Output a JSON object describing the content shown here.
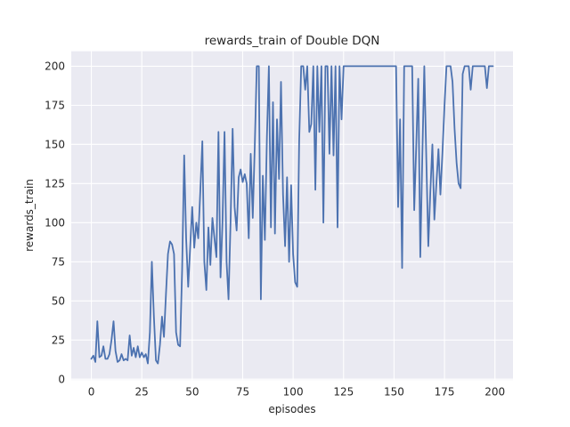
{
  "chart_data": {
    "type": "line",
    "title": "rewards_train of Double DQN",
    "xlabel": "episodes",
    "ylabel": "rewards_train",
    "x_ticks": [
      0,
      25,
      50,
      75,
      100,
      125,
      150,
      175,
      200
    ],
    "y_ticks": [
      0,
      25,
      50,
      75,
      100,
      125,
      150,
      175,
      200
    ],
    "xlim": [
      -9.95,
      208.95
    ],
    "ylim": [
      -0.55,
      209.55
    ],
    "grid": "on",
    "legend": "none",
    "x_start": 0,
    "x_step": 1,
    "series": [
      {
        "name": "rewards_train",
        "values": [
          13,
          15,
          11,
          37,
          14,
          15,
          21,
          13,
          13,
          16,
          25,
          37,
          18,
          11,
          12,
          16,
          12,
          13,
          12,
          28,
          15,
          20,
          14,
          21,
          14,
          17,
          14,
          16,
          10,
          30,
          75,
          40,
          12,
          10,
          22,
          40,
          27,
          55,
          80,
          88,
          86,
          80,
          30,
          22,
          21,
          70,
          143,
          90,
          59,
          85,
          110,
          84,
          100,
          90,
          120,
          152,
          75,
          57,
          97,
          73,
          103,
          90,
          78,
          158,
          65,
          100,
          158,
          75,
          51,
          101,
          160,
          110,
          95,
          129,
          134,
          126,
          131,
          125,
          90,
          144,
          103,
          150,
          200,
          200,
          51,
          130,
          89,
          155,
          200,
          97,
          177,
          93,
          166,
          128,
          190,
          118,
          85,
          129,
          75,
          124,
          80,
          62,
          59,
          152,
          200,
          200,
          185,
          200,
          158,
          163,
          200,
          121,
          200,
          158,
          200,
          100,
          200,
          200,
          144,
          200,
          143,
          200,
          97,
          200,
          166,
          200,
          200,
          200,
          200,
          200,
          200,
          200,
          200,
          200,
          200,
          200,
          200,
          200,
          200,
          200,
          200,
          200,
          200,
          200,
          200,
          200,
          200,
          200,
          200,
          200,
          200,
          200,
          110,
          166,
          71,
          200,
          200,
          200,
          200,
          200,
          108,
          150,
          192,
          78,
          140,
          200,
          140,
          85,
          120,
          150,
          102,
          125,
          147,
          118,
          145,
          175,
          200,
          200,
          200,
          190,
          160,
          138,
          125,
          122,
          195,
          200,
          200,
          200,
          185,
          200,
          200,
          200,
          200,
          200,
          200,
          200,
          186,
          200,
          200,
          200
        ]
      }
    ],
    "colors": {
      "line": "#4c72b0",
      "axes_background": "#eaeaf2",
      "grid": "#ffffff",
      "figure_background": "#ffffff",
      "text": "#262626"
    }
  }
}
